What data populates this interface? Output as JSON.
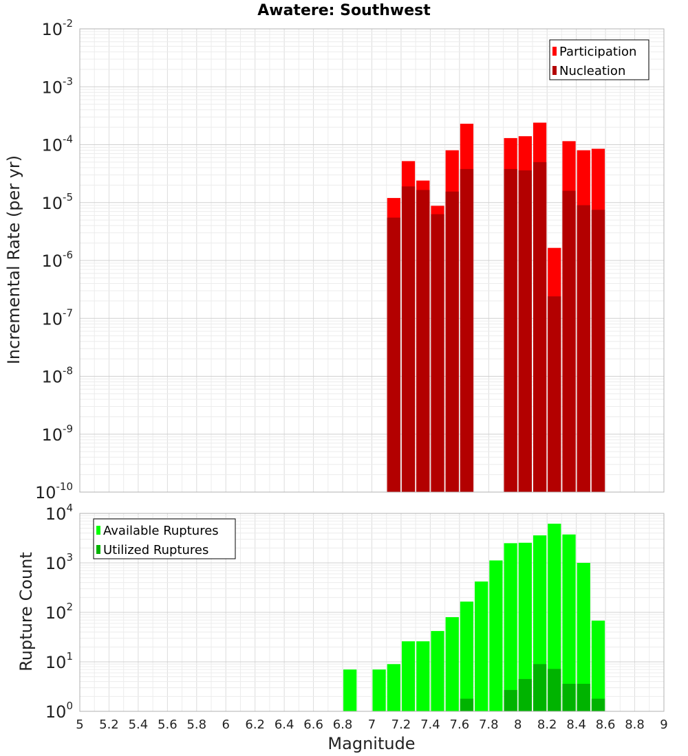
{
  "chart_data": [
    {
      "type": "bar",
      "title": "Awatere: Southwest",
      "xlabel": "",
      "ylabel": "Incremental Rate (per yr)",
      "y_scale": "log",
      "ylim_exponents": [
        -10,
        -2
      ],
      "xlim": [
        5,
        9
      ],
      "bar_width": 0.1,
      "grid": true,
      "legend_position": "top-right",
      "series": [
        {
          "name": "Participation",
          "color": "#ff0000",
          "x": [
            7.15,
            7.25,
            7.35,
            7.45,
            7.55,
            7.65,
            7.95,
            8.05,
            8.15,
            8.25,
            8.35,
            8.45,
            8.55
          ],
          "values": [
            1.2e-05,
            5.2e-05,
            2.4e-05,
            8.8e-06,
            8e-05,
            0.00023,
            0.00013,
            0.00014,
            0.00024,
            1.65e-06,
            0.000115,
            8e-05,
            8.5e-05
          ]
        },
        {
          "name": "Nucleation",
          "color": "#b30000",
          "x": [
            7.15,
            7.25,
            7.35,
            7.45,
            7.55,
            7.65,
            7.95,
            8.05,
            8.15,
            8.25,
            8.35,
            8.45,
            8.55
          ],
          "values": [
            5.5e-06,
            1.9e-05,
            1.65e-05,
            6.3e-06,
            1.55e-05,
            3.8e-05,
            3.8e-05,
            3.6e-05,
            5e-05,
            2.4e-07,
            1.6e-05,
            9e-06,
            7.5e-06
          ]
        }
      ]
    },
    {
      "type": "bar",
      "title": "",
      "xlabel": "Magnitude",
      "ylabel": "Rupture Count",
      "y_scale": "log",
      "ylim_exponents": [
        0,
        4
      ],
      "xlim": [
        5,
        9
      ],
      "bar_width": 0.1,
      "grid": true,
      "legend_position": "top-left",
      "x_ticks": [
        "5",
        "5.2",
        "5.4",
        "5.6",
        "5.8",
        "6",
        "6.2",
        "6.4",
        "6.6",
        "6.8",
        "7",
        "7.2",
        "7.4",
        "7.6",
        "7.8",
        "8",
        "8.2",
        "8.4",
        "8.6",
        "8.8",
        "9"
      ],
      "series": [
        {
          "name": "Available Ruptures",
          "color": "#00ff00",
          "x": [
            6.85,
            7.05,
            7.15,
            7.25,
            7.35,
            7.45,
            7.55,
            7.65,
            7.75,
            7.85,
            7.95,
            8.05,
            8.15,
            8.25,
            8.35,
            8.45,
            8.55
          ],
          "values": [
            7,
            7,
            9,
            26,
            26,
            42,
            80,
            165,
            420,
            1120,
            2500,
            2550,
            3600,
            6200,
            3750,
            1000,
            68
          ]
        },
        {
          "name": "Utilized Ruptures",
          "color": "#00b300",
          "x": [
            7.15,
            7.25,
            7.35,
            7.45,
            7.55,
            7.65,
            7.95,
            8.05,
            8.15,
            8.25,
            8.35,
            8.45,
            8.55
          ],
          "values": [
            1,
            1,
            1,
            1,
            1,
            1.8,
            2.7,
            4.5,
            9,
            7.2,
            3.6,
            3.6,
            1.8
          ]
        }
      ]
    }
  ]
}
